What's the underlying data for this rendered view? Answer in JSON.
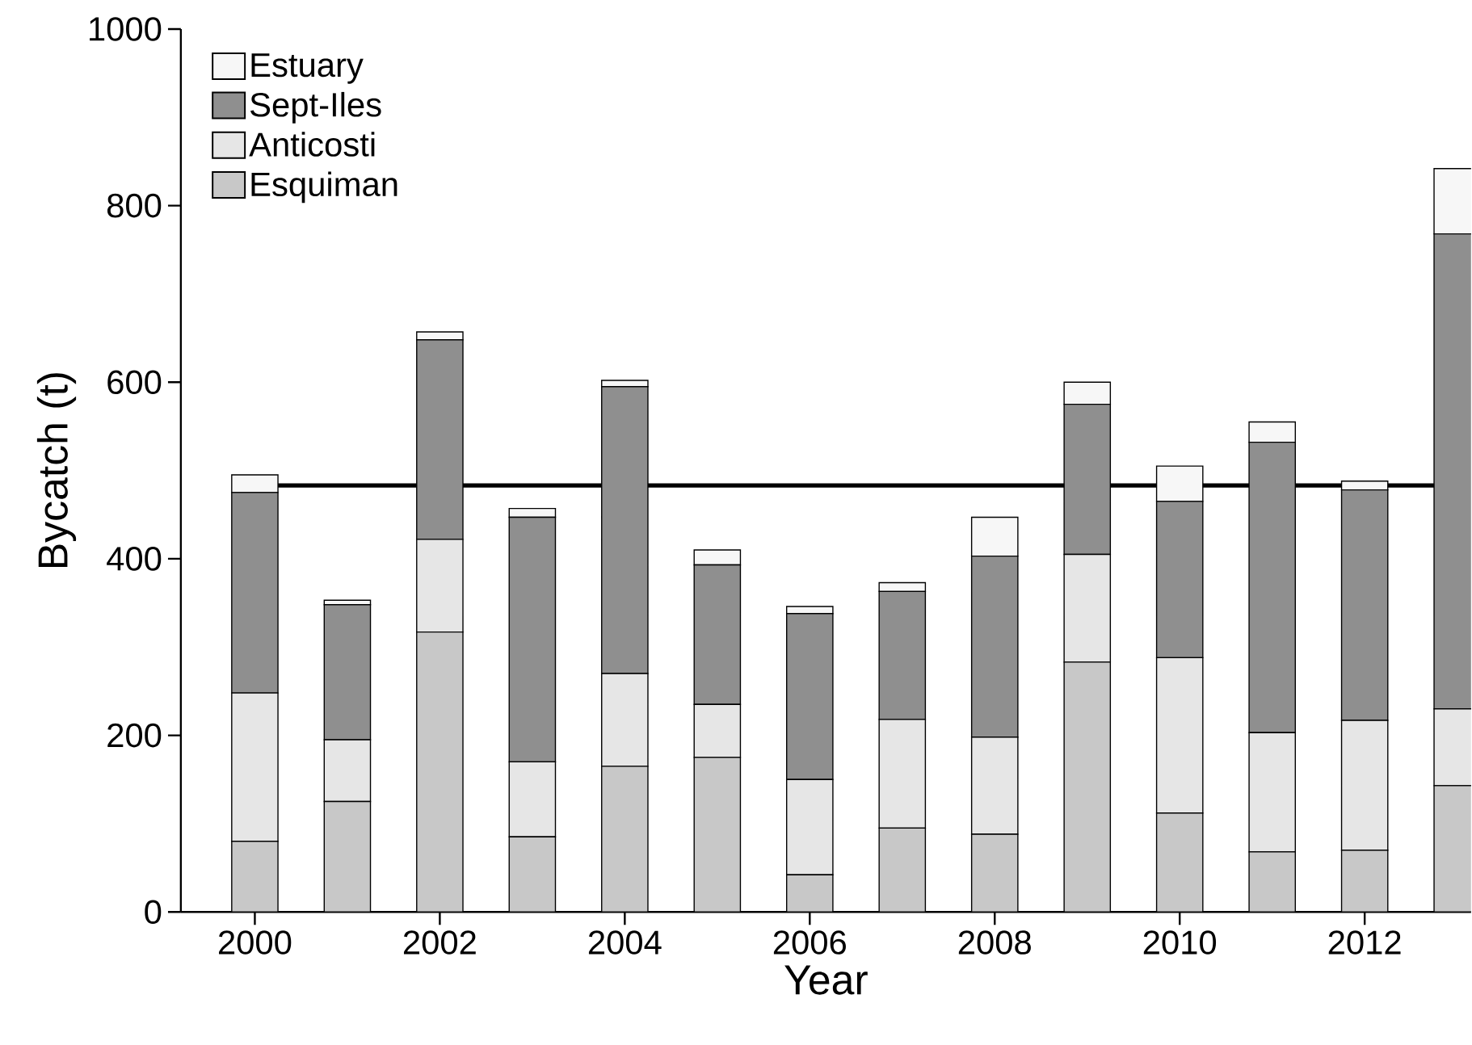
{
  "chart_data": {
    "type": "bar",
    "stacked": true,
    "xlabel": "Year",
    "ylabel": "Bycatch (t)",
    "x": [
      2000,
      2001,
      2002,
      2003,
      2004,
      2005,
      2006,
      2007,
      2008,
      2009,
      2010,
      2011,
      2012,
      2013
    ],
    "series": [
      {
        "name": "Esquiman",
        "color": "#c8c8c8",
        "values": [
          80,
          125,
          317,
          85,
          165,
          175,
          42,
          95,
          88,
          283,
          112,
          68,
          70,
          143
        ]
      },
      {
        "name": "Anticosti",
        "color": "#e6e6e6",
        "values": [
          168,
          70,
          105,
          85,
          105,
          60,
          108,
          123,
          110,
          122,
          176,
          135,
          147,
          87
        ]
      },
      {
        "name": "Sept-Iles",
        "color": "#8f8f8f",
        "values": [
          227,
          153,
          226,
          277,
          325,
          158,
          188,
          145,
          205,
          170,
          177,
          329,
          261,
          538
        ]
      },
      {
        "name": "Estuary",
        "color": "#f7f7f7",
        "values": [
          20,
          5,
          9,
          10,
          7,
          17,
          8,
          10,
          44,
          25,
          40,
          23,
          10,
          74
        ]
      }
    ],
    "xlim": [
      1999.2,
      2013.15
    ],
    "ylim": [
      0,
      1000
    ],
    "xticks": [
      2000,
      2002,
      2004,
      2006,
      2008,
      2010,
      2012
    ],
    "yticks": [
      0,
      200,
      400,
      600,
      800,
      1000
    ],
    "ref_lines": [
      {
        "axis": "y",
        "value": 483
      }
    ],
    "grid": false,
    "legend": "top left"
  }
}
